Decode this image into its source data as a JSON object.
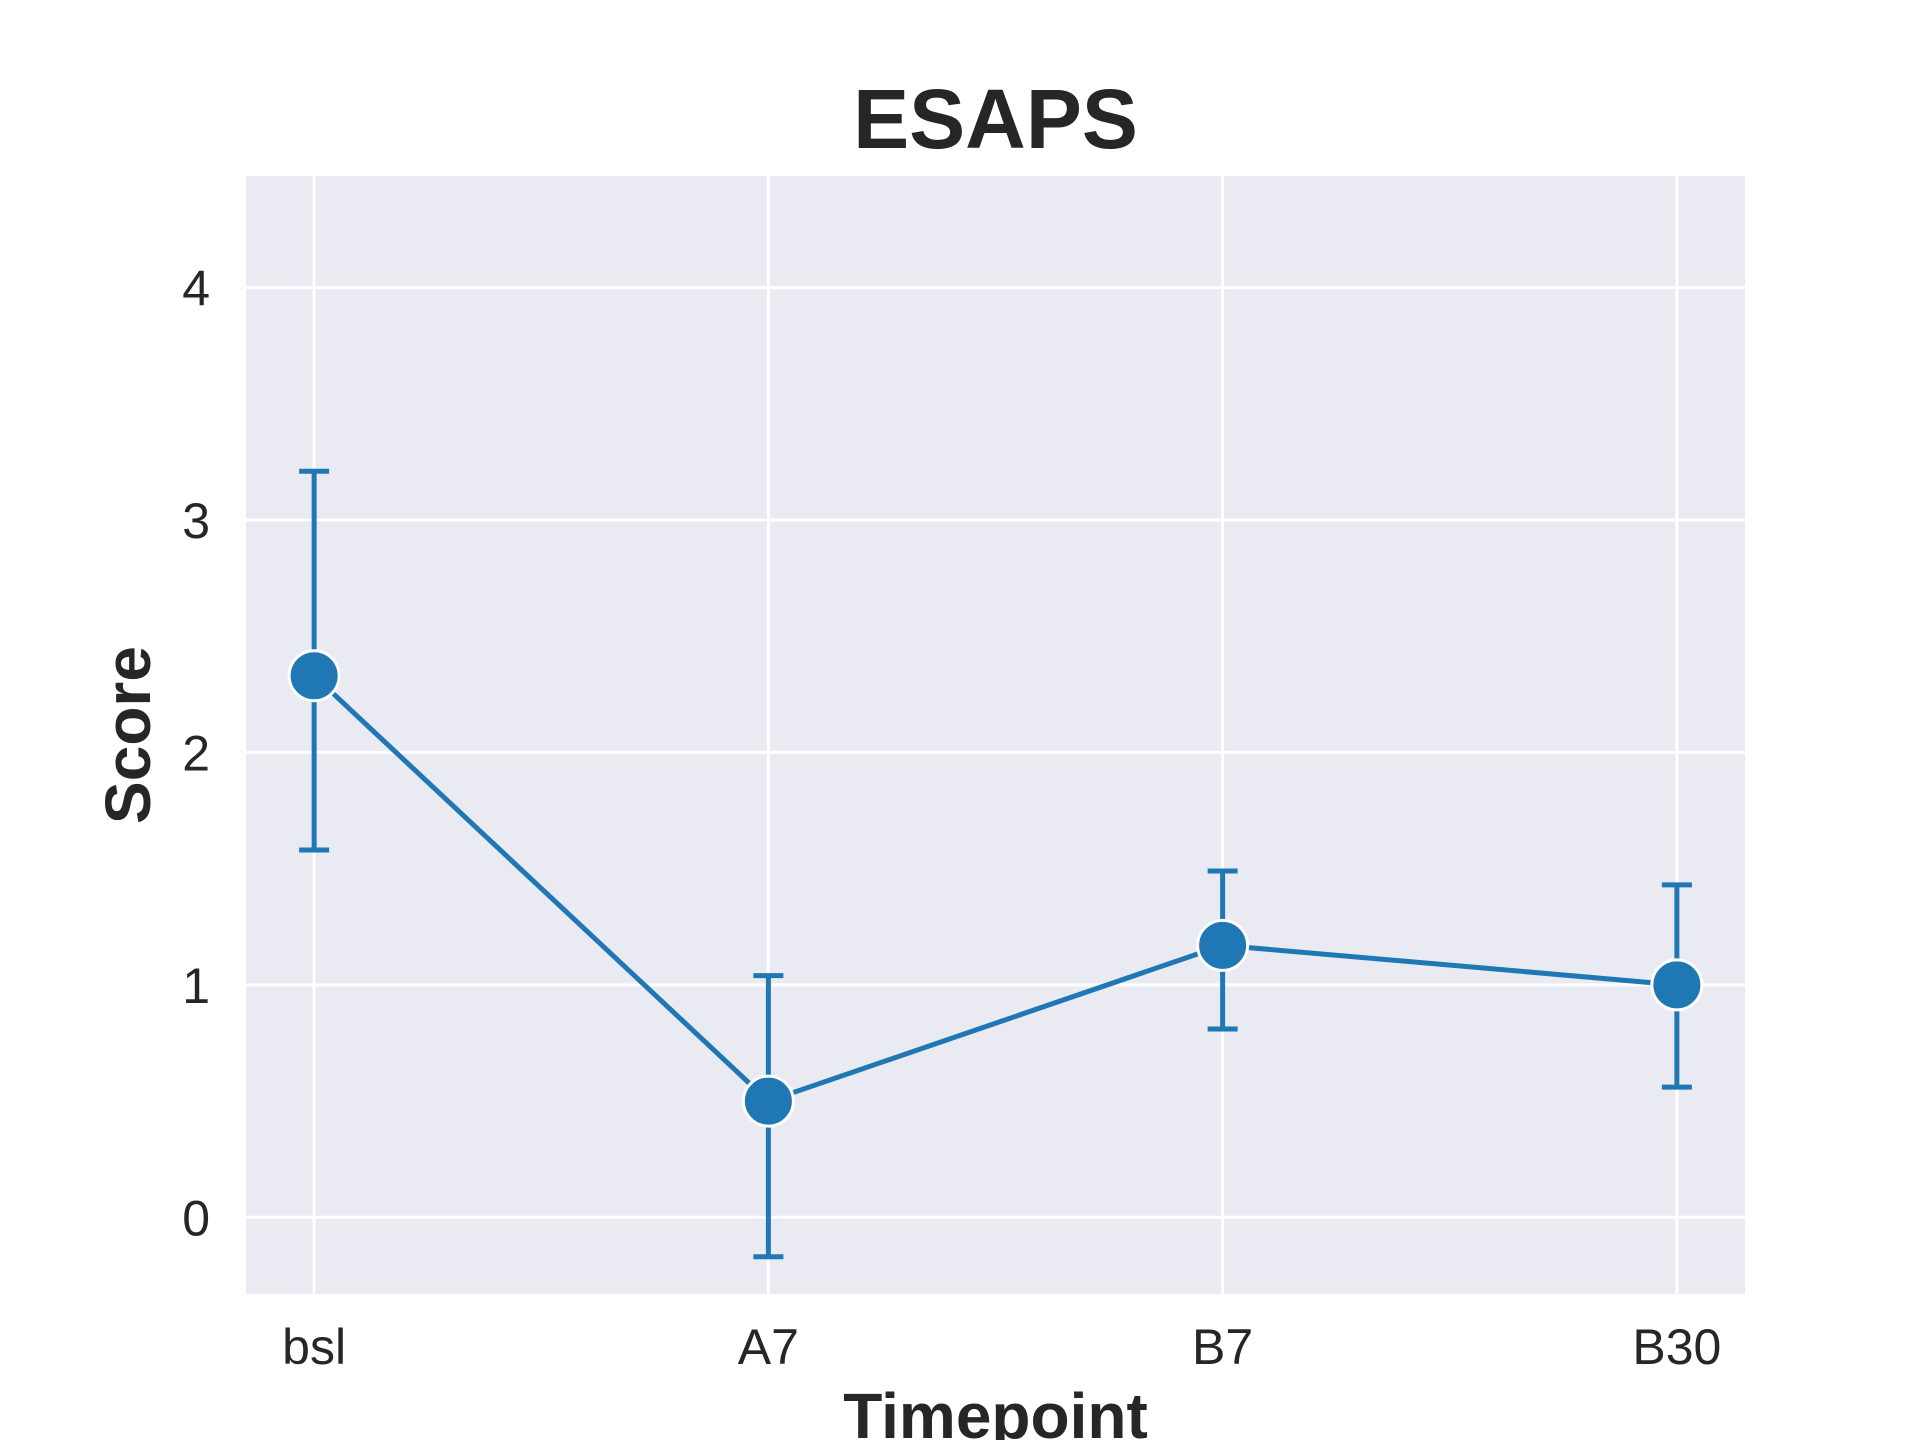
{
  "chart_data": {
    "type": "line",
    "title": "ESAPS",
    "xlabel": "Timepoint",
    "ylabel": "Score",
    "categories": [
      "bsl",
      "A7",
      "B7",
      "B30"
    ],
    "series": [
      {
        "values": [
          2.33,
          0.5,
          1.17,
          1.0
        ],
        "error_low": [
          1.58,
          -0.17,
          0.81,
          0.56
        ],
        "error_high": [
          3.21,
          1.04,
          1.49,
          1.43
        ]
      }
    ],
    "ylim": [
      -0.33,
      4.48
    ],
    "yticks": [
      "0",
      "1",
      "2",
      "3",
      "4"
    ],
    "grid": true,
    "colors": {
      "line": "#1f77b4",
      "plot_background": "#eaeaf2",
      "grid": "#ffffff",
      "text": "#262626"
    }
  }
}
